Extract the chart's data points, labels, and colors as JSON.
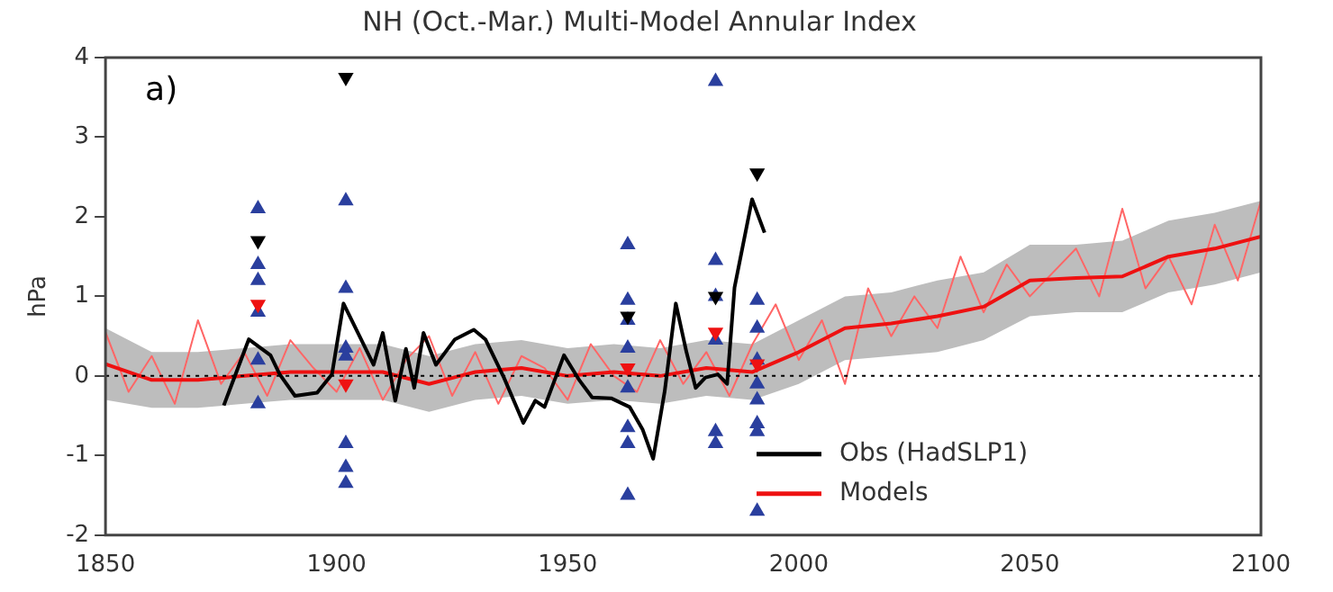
{
  "chart_data": {
    "type": "line",
    "title": "NH (Oct.-Mar.) Multi-Model Annular Index",
    "ylabel": "hPa",
    "annotations": [
      "a)"
    ],
    "xlim": [
      1850,
      2100
    ],
    "xticks": [
      1850,
      1900,
      1950,
      2000,
      2050,
      2100
    ],
    "ylim": [
      -2,
      4
    ],
    "yticks": [
      -2,
      -1,
      0,
      1,
      2,
      3,
      4
    ],
    "grid": false,
    "legend": "bottom right",
    "ref_lines": [
      {
        "axis": "y",
        "value": 0,
        "color": "#000000",
        "line_style": "dotted"
      }
    ],
    "series": [
      {
        "name": "Obs (HadSLP1)",
        "color": "#000000",
        "marker": "none",
        "x": [
          1875.6,
          1881,
          1885.7,
          1887.7,
          1891,
          1895.8,
          1899,
          1901.5,
          1905.3,
          1908,
          1910,
          1912.7,
          1915,
          1916.8,
          1918.8,
          1921.5,
          1925.6,
          1929.7,
          1932.2,
          1936.2,
          1940.4,
          1943,
          1945,
          1949.2,
          1952.6,
          1955.3,
          1959.4,
          1963.4,
          1966.2,
          1968.5,
          1971,
          1973.4,
          1975.7,
          1977.7,
          1979.8,
          1982.5,
          1984.5,
          1986.1,
          1989.9,
          1992.6
        ],
        "values": [
          -0.37,
          0.46,
          0.26,
          0.02,
          -0.25,
          -0.21,
          0.02,
          0.91,
          0.46,
          0.14,
          0.54,
          -0.31,
          0.34,
          -0.15,
          0.54,
          0.14,
          0.46,
          0.58,
          0.46,
          -0.02,
          -0.59,
          -0.31,
          -0.39,
          0.26,
          -0.06,
          -0.27,
          -0.28,
          -0.39,
          -0.67,
          -1.04,
          -0.19,
          0.91,
          0.3,
          -0.15,
          -0.02,
          0.02,
          -0.1,
          1.11,
          2.22,
          1.8
        ]
      },
      {
        "name": "Models",
        "color": "#ee1111",
        "marker": "none",
        "x": [
          1850,
          1860,
          1870,
          1880,
          1890,
          1900,
          1910,
          1920,
          1930,
          1940,
          1950,
          1960,
          1970,
          1980,
          1990,
          2000,
          2010,
          2020,
          2030,
          2040,
          2050,
          2060,
          2070,
          2080,
          2090,
          2100
        ],
        "values": [
          0.15,
          -0.05,
          -0.05,
          0.0,
          0.05,
          0.05,
          0.05,
          -0.1,
          0.05,
          0.1,
          0.0,
          0.05,
          0.0,
          0.1,
          0.05,
          0.3,
          0.6,
          0.66,
          0.75,
          0.87,
          1.2,
          1.23,
          1.25,
          1.5,
          1.6,
          1.75
        ],
        "lower": [
          -0.3,
          -0.4,
          -0.4,
          -0.35,
          -0.3,
          -0.3,
          -0.3,
          -0.45,
          -0.3,
          -0.25,
          -0.35,
          -0.3,
          -0.35,
          -0.25,
          -0.3,
          -0.1,
          0.2,
          0.25,
          0.3,
          0.45,
          0.75,
          0.8,
          0.8,
          1.05,
          1.15,
          1.3
        ],
        "upper": [
          0.6,
          0.3,
          0.3,
          0.35,
          0.4,
          0.4,
          0.4,
          0.25,
          0.4,
          0.45,
          0.35,
          0.4,
          0.35,
          0.45,
          0.4,
          0.7,
          1.0,
          1.05,
          1.2,
          1.3,
          1.65,
          1.65,
          1.7,
          1.95,
          2.05,
          2.2
        ]
      },
      {
        "color": "#ff6666",
        "marker": "none",
        "x": [
          1850,
          1855,
          1860,
          1865,
          1870,
          1875,
          1880,
          1885,
          1890,
          1895,
          1900,
          1905,
          1910,
          1915,
          1920,
          1925,
          1930,
          1935,
          1940,
          1945,
          1950,
          1955,
          1960,
          1965,
          1970,
          1975,
          1980,
          1985,
          1990,
          1995,
          2000,
          2005,
          2010,
          2015,
          2020,
          2025,
          2030,
          2035,
          2040,
          2045,
          2050,
          2055,
          2060,
          2065,
          2070,
          2075,
          2080,
          2085,
          2090,
          2095,
          2100
        ],
        "values": [
          0.55,
          -0.2,
          0.25,
          -0.35,
          0.7,
          -0.1,
          0.3,
          -0.25,
          0.45,
          0.1,
          -0.2,
          0.35,
          -0.3,
          0.2,
          0.5,
          -0.25,
          0.3,
          -0.35,
          0.25,
          0.1,
          -0.3,
          0.4,
          0.0,
          -0.2,
          0.45,
          -0.1,
          0.3,
          -0.25,
          0.4,
          0.9,
          0.2,
          0.7,
          -0.1,
          1.1,
          0.5,
          1.0,
          0.6,
          1.5,
          0.8,
          1.4,
          1.0,
          1.3,
          1.6,
          1.0,
          2.1,
          1.1,
          1.5,
          0.9,
          1.9,
          1.2,
          2.2
        ]
      },
      {
        "type": "scatter",
        "color": "#2a3f9e",
        "marker": "triangle",
        "x": [
          1883,
          1883,
          1883,
          1883,
          1883,
          1883,
          1902,
          1902,
          1902,
          1902,
          1902,
          1902,
          1902,
          1963,
          1963,
          1963,
          1963,
          1963,
          1963,
          1963,
          1963,
          1982,
          1982,
          1982,
          1982,
          1982,
          1982,
          1991,
          1991,
          1991,
          1991,
          1991,
          1991,
          1991,
          1991
        ],
        "values": [
          2.1,
          1.4,
          1.2,
          0.8,
          0.2,
          -0.35,
          2.2,
          1.1,
          0.35,
          0.25,
          -0.85,
          -1.15,
          -1.35,
          1.65,
          0.95,
          0.7,
          0.35,
          -0.15,
          -0.65,
          -0.85,
          -1.5,
          3.7,
          1.45,
          1.0,
          0.45,
          -0.7,
          -0.85,
          0.95,
          0.6,
          0.2,
          -0.1,
          -0.3,
          -0.6,
          -0.7,
          -1.7
        ]
      },
      {
        "type": "scatter",
        "color": "#000000",
        "marker": "triangle-down",
        "x": [
          1883,
          1902,
          1963,
          1982,
          1991
        ],
        "values": [
          1.7,
          3.75,
          0.75,
          1.0,
          2.55
        ]
      },
      {
        "type": "scatter",
        "color": "#ee1111",
        "marker": "triangle-down",
        "x": [
          1883,
          1902,
          1963,
          1982,
          1991
        ],
        "values": [
          0.9,
          -0.1,
          0.1,
          0.55,
          0.15
        ]
      }
    ]
  }
}
